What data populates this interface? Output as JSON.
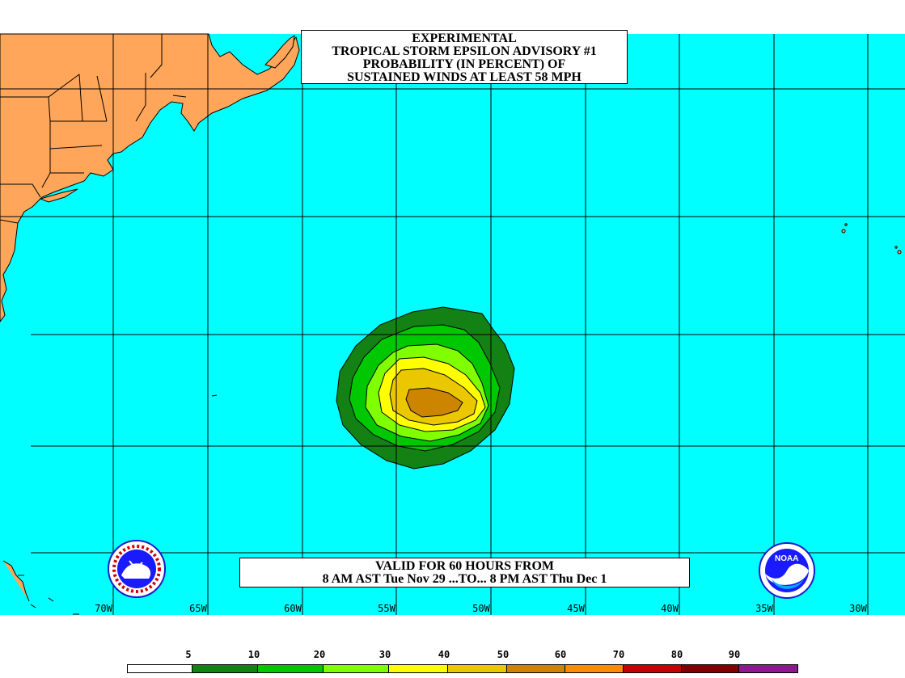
{
  "title": {
    "line1": "EXPERIMENTAL",
    "line2": "TROPICAL STORM EPSILON ADVISORY #1",
    "line3": "PROBABILITY (IN PERCENT) OF",
    "line4": "SUSTAINED WINDS AT LEAST 58 MPH"
  },
  "valid": {
    "line1": "VALID FOR 60 HOURS FROM",
    "line2": "8 AM AST Tue Nov 29 ...TO... 8 PM AST Thu Dec 1"
  },
  "longitude_labels": [
    "70W",
    "65W",
    "60W",
    "55W",
    "50W",
    "45W",
    "40W",
    "35W",
    "30W"
  ],
  "legend": {
    "labels": [
      "5",
      "10",
      "20",
      "30",
      "40",
      "50",
      "60",
      "70",
      "80",
      "90"
    ],
    "colors": [
      "#ffffff",
      "#138113",
      "#00c800",
      "#7fff00",
      "#ffff00",
      "#ebc700",
      "#cd8500",
      "#ff8c00",
      "#c80000",
      "#7f0000",
      "#8c1a8c"
    ]
  },
  "colors": {
    "ocean": "#00ffff",
    "land": "#ffa65a",
    "grid": "#000000"
  },
  "logos": {
    "left": "national-weather-service-logo",
    "right": "noaa-logo",
    "right_text": "NOAA"
  }
}
